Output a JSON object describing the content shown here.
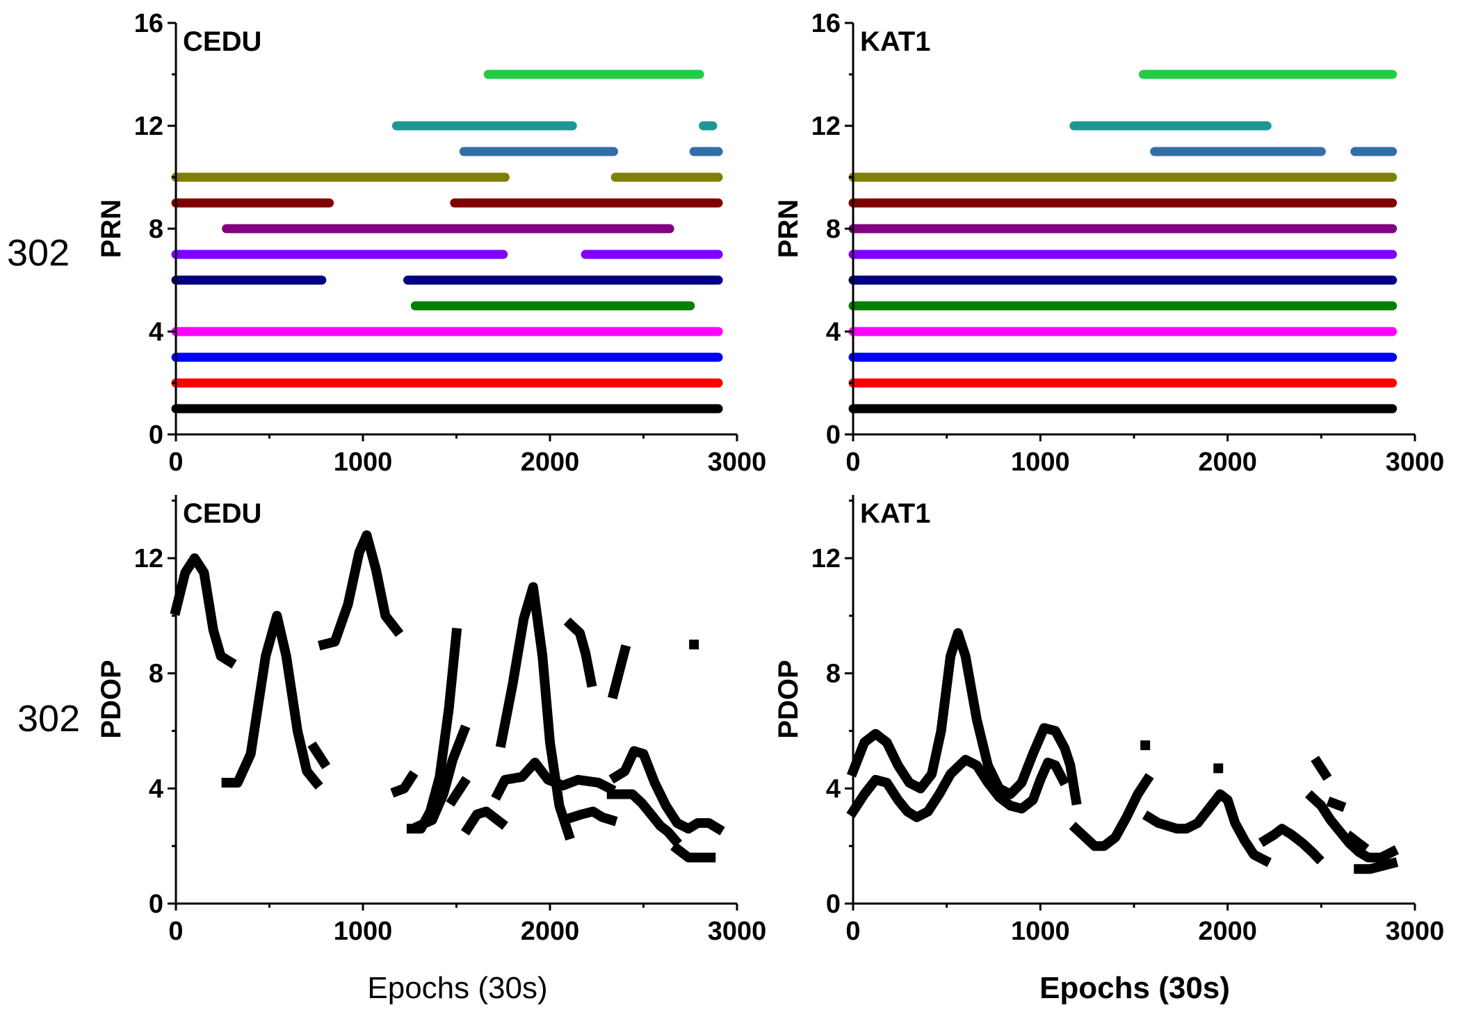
{
  "figure": {
    "side_labels": [
      "302",
      "302"
    ],
    "xlabels": [
      "Epochs (30s)",
      "Epochs (30s)"
    ]
  },
  "chart_data": [
    {
      "id": "prn-cedu",
      "type": "scatter",
      "title": "CEDU",
      "xlabel": "",
      "ylabel": "PRN",
      "xlim": [
        0,
        3000
      ],
      "ylim": [
        0,
        16
      ],
      "xticks": [
        0,
        1000,
        2000,
        3000
      ],
      "yticks": [
        0,
        4,
        8,
        12,
        16
      ],
      "yticks_minor": [
        2,
        6,
        10,
        14
      ],
      "series": [
        {
          "prn": 1,
          "color": "#000000",
          "segments": [
            [
              0,
              2900
            ]
          ]
        },
        {
          "prn": 2,
          "color": "#ff0000",
          "segments": [
            [
              0,
              2900
            ]
          ]
        },
        {
          "prn": 3,
          "color": "#0000ff",
          "segments": [
            [
              0,
              2900
            ]
          ]
        },
        {
          "prn": 4,
          "color": "#ff00ff",
          "segments": [
            [
              0,
              2900
            ]
          ]
        },
        {
          "prn": 5,
          "color": "#008000",
          "segments": [
            [
              1280,
              2750
            ]
          ]
        },
        {
          "prn": 6,
          "color": "#000080",
          "segments": [
            [
              0,
              780
            ],
            [
              1240,
              2900
            ]
          ]
        },
        {
          "prn": 7,
          "color": "#8000ff",
          "segments": [
            [
              0,
              1750
            ],
            [
              2190,
              2900
            ]
          ]
        },
        {
          "prn": 8,
          "color": "#800080",
          "segments": [
            [
              270,
              2640
            ]
          ]
        },
        {
          "prn": 9,
          "color": "#800000",
          "segments": [
            [
              0,
              820
            ],
            [
              1490,
              2900
            ]
          ]
        },
        {
          "prn": 10,
          "color": "#808000",
          "segments": [
            [
              0,
              1760
            ],
            [
              2350,
              2900
            ]
          ]
        },
        {
          "prn": 11,
          "color": "#336ea8",
          "segments": [
            [
              1540,
              2340
            ],
            [
              2770,
              2900
            ]
          ]
        },
        {
          "prn": 12,
          "color": "#1e9696",
          "segments": [
            [
              1180,
              2120
            ],
            [
              2820,
              2870
            ]
          ]
        },
        {
          "prn": 14,
          "color": "#22cc44",
          "segments": [
            [
              1670,
              2800
            ]
          ]
        }
      ]
    },
    {
      "id": "prn-kat1",
      "type": "scatter",
      "title": "KAT1",
      "xlabel": "",
      "ylabel": "PRN",
      "xlim": [
        0,
        3000
      ],
      "ylim": [
        0,
        16
      ],
      "xticks": [
        0,
        1000,
        2000,
        3000
      ],
      "yticks": [
        0,
        4,
        8,
        12,
        16
      ],
      "yticks_minor": [
        2,
        6,
        10,
        14
      ],
      "series": [
        {
          "prn": 1,
          "color": "#000000",
          "segments": [
            [
              0,
              2880
            ]
          ]
        },
        {
          "prn": 2,
          "color": "#ff0000",
          "segments": [
            [
              0,
              2880
            ]
          ]
        },
        {
          "prn": 3,
          "color": "#0000ff",
          "segments": [
            [
              0,
              2880
            ]
          ]
        },
        {
          "prn": 4,
          "color": "#ff00ff",
          "segments": [
            [
              0,
              2880
            ]
          ]
        },
        {
          "prn": 5,
          "color": "#008000",
          "segments": [
            [
              0,
              2880
            ]
          ]
        },
        {
          "prn": 6,
          "color": "#000080",
          "segments": [
            [
              0,
              2880
            ]
          ]
        },
        {
          "prn": 7,
          "color": "#8000ff",
          "segments": [
            [
              0,
              2880
            ]
          ]
        },
        {
          "prn": 8,
          "color": "#800080",
          "segments": [
            [
              0,
              2880
            ]
          ]
        },
        {
          "prn": 9,
          "color": "#800000",
          "segments": [
            [
              0,
              2880
            ]
          ]
        },
        {
          "prn": 10,
          "color": "#808000",
          "segments": [
            [
              0,
              2880
            ]
          ]
        },
        {
          "prn": 11,
          "color": "#336ea8",
          "segments": [
            [
              1610,
              2500
            ],
            [
              2680,
              2880
            ]
          ]
        },
        {
          "prn": 12,
          "color": "#1e9696",
          "segments": [
            [
              1180,
              2210
            ]
          ]
        },
        {
          "prn": 14,
          "color": "#22cc44",
          "segments": [
            [
              1550,
              2880
            ]
          ]
        }
      ]
    },
    {
      "id": "pdop-cedu",
      "type": "scatter",
      "title": "CEDU",
      "xlabel": "Epochs (30s)",
      "ylabel": "PDOP",
      "xlim": [
        0,
        3000
      ],
      "ylim": [
        0,
        14.2
      ],
      "xticks": [
        0,
        1000,
        2000,
        3000
      ],
      "yticks": [
        0,
        4,
        8,
        12
      ],
      "yticks_minor": [
        2,
        6,
        10,
        14
      ],
      "segments": [
        [
          [
            0,
            10.2
          ],
          [
            50,
            11.5
          ],
          [
            100,
            12
          ],
          [
            150,
            11.5
          ],
          [
            200,
            9.5
          ],
          [
            240,
            8.6
          ],
          [
            290,
            8.4
          ]
        ],
        [
          [
            270,
            4.2
          ],
          [
            330,
            4.2
          ],
          [
            400,
            5.2
          ],
          [
            480,
            8.6
          ],
          [
            540,
            10
          ],
          [
            590,
            8.6
          ],
          [
            650,
            6
          ],
          [
            700,
            4.6
          ],
          [
            750,
            4.2
          ]
        ],
        [
          [
            740,
            5.4
          ],
          [
            790,
            4.9
          ]
        ],
        [
          [
            790,
            9.0
          ],
          [
            850,
            9.1
          ],
          [
            920,
            10.4
          ],
          [
            980,
            12.2
          ],
          [
            1020,
            12.8
          ],
          [
            1070,
            11.6
          ],
          [
            1120,
            10
          ],
          [
            1180,
            9.5
          ]
        ],
        [
          [
            1180,
            3.9
          ],
          [
            1220,
            4.0
          ],
          [
            1260,
            4.4
          ]
        ],
        [
          [
            1260,
            2.6
          ],
          [
            1310,
            2.6
          ],
          [
            1360,
            3.2
          ],
          [
            1410,
            4.4
          ],
          [
            1460,
            6.8
          ],
          [
            1500,
            9.4
          ]
        ],
        [
          [
            1300,
            2.7
          ],
          [
            1370,
            2.9
          ],
          [
            1430,
            3.8
          ],
          [
            1480,
            5.0
          ],
          [
            1540,
            6.0
          ]
        ],
        [
          [
            1480,
            3.6
          ],
          [
            1540,
            4.2
          ]
        ],
        [
          [
            1560,
            2.6
          ],
          [
            1610,
            3.1
          ],
          [
            1660,
            3.2
          ],
          [
            1700,
            3.0
          ],
          [
            1740,
            2.8
          ]
        ],
        [
          [
            1720,
            3.8
          ],
          [
            1760,
            4.3
          ],
          [
            1850,
            4.4
          ],
          [
            1920,
            4.9
          ],
          [
            1990,
            4.3
          ],
          [
            2070,
            4.1
          ],
          [
            2150,
            4.3
          ],
          [
            2260,
            4.2
          ],
          [
            2320,
            4.0
          ]
        ],
        [
          [
            1740,
            5.6
          ],
          [
            1800,
            7.6
          ],
          [
            1860,
            9.9
          ],
          [
            1910,
            11.0
          ],
          [
            1960,
            8.6
          ],
          [
            2000,
            5.6
          ],
          [
            2050,
            3.4
          ],
          [
            2100,
            2.4
          ]
        ],
        [
          [
            2110,
            9.7
          ],
          [
            2160,
            9.4
          ],
          [
            2190,
            8.7
          ],
          [
            2220,
            7.7
          ]
        ],
        [
          [
            2120,
            3.0
          ],
          [
            2170,
            3.1
          ],
          [
            2230,
            3.2
          ],
          [
            2280,
            3.0
          ],
          [
            2330,
            2.9
          ]
        ],
        [
          [
            2340,
            7.3
          ],
          [
            2380,
            8.3
          ],
          [
            2400,
            8.8
          ]
        ],
        [
          [
            2330,
            3.8
          ],
          [
            2380,
            3.8
          ],
          [
            2440,
            3.8
          ],
          [
            2490,
            3.5
          ],
          [
            2540,
            3.1
          ],
          [
            2590,
            2.7
          ],
          [
            2630,
            2.5
          ],
          [
            2670,
            2.2
          ]
        ],
        [
          [
            2350,
            4.4
          ],
          [
            2400,
            4.6
          ],
          [
            2450,
            5.3
          ],
          [
            2500,
            5.2
          ],
          [
            2560,
            4.2
          ],
          [
            2620,
            3.4
          ],
          [
            2680,
            2.8
          ],
          [
            2740,
            2.6
          ],
          [
            2790,
            2.8
          ],
          [
            2850,
            2.8
          ],
          [
            2900,
            2.6
          ]
        ],
        [
          [
            2680,
            1.9
          ],
          [
            2740,
            1.6
          ],
          [
            2800,
            1.6
          ],
          [
            2860,
            1.6
          ]
        ],
        [
          [
            2770,
            9.0
          ]
        ]
      ]
    },
    {
      "id": "pdop-kat1",
      "type": "scatter",
      "title": "KAT1",
      "xlabel": "Epochs (30s)",
      "ylabel": "PDOP",
      "xlim": [
        0,
        3000
      ],
      "ylim": [
        0,
        14.2
      ],
      "xticks": [
        0,
        1000,
        2000,
        3000
      ],
      "yticks": [
        0,
        4,
        8,
        12
      ],
      "yticks_minor": [
        2,
        6,
        10,
        14
      ],
      "segments": [
        [
          [
            0,
            3.2
          ],
          [
            60,
            3.8
          ],
          [
            120,
            4.3
          ],
          [
            180,
            4.2
          ],
          [
            240,
            3.6
          ],
          [
            290,
            3.2
          ],
          [
            340,
            3.0
          ],
          [
            400,
            3.2
          ],
          [
            460,
            3.8
          ],
          [
            520,
            4.5
          ],
          [
            600,
            5.0
          ],
          [
            660,
            4.8
          ],
          [
            720,
            4.2
          ],
          [
            780,
            3.7
          ],
          [
            840,
            3.4
          ],
          [
            900,
            3.3
          ],
          [
            960,
            3.6
          ],
          [
            1000,
            4.3
          ],
          [
            1040,
            4.9
          ],
          [
            1080,
            4.8
          ],
          [
            1120,
            4.3
          ]
        ],
        [
          [
            0,
            4.6
          ],
          [
            60,
            5.6
          ],
          [
            120,
            5.9
          ],
          [
            180,
            5.6
          ],
          [
            240,
            4.8
          ],
          [
            300,
            4.2
          ],
          [
            360,
            4.0
          ],
          [
            420,
            4.5
          ],
          [
            470,
            6.0
          ],
          [
            520,
            8.6
          ],
          [
            560,
            9.4
          ],
          [
            600,
            8.6
          ],
          [
            660,
            6.4
          ],
          [
            720,
            4.8
          ],
          [
            780,
            4.0
          ],
          [
            840,
            3.8
          ],
          [
            900,
            4.2
          ],
          [
            960,
            5.2
          ],
          [
            1020,
            6.1
          ],
          [
            1080,
            6.0
          ],
          [
            1130,
            5.4
          ],
          [
            1160,
            4.8
          ],
          [
            1190,
            3.6
          ]
        ],
        [
          [
            1190,
            2.6
          ],
          [
            1240,
            2.3
          ],
          [
            1290,
            2.0
          ],
          [
            1340,
            2.0
          ],
          [
            1400,
            2.3
          ],
          [
            1460,
            3.0
          ],
          [
            1520,
            3.8
          ],
          [
            1570,
            4.3
          ]
        ],
        [
          [
            1560,
            5.5
          ]
        ],
        [
          [
            1580,
            3.0
          ],
          [
            1630,
            2.8
          ],
          [
            1680,
            2.7
          ],
          [
            1730,
            2.6
          ],
          [
            1780,
            2.6
          ],
          [
            1840,
            2.8
          ],
          [
            1900,
            3.3
          ],
          [
            1960,
            3.8
          ],
          [
            2000,
            3.6
          ],
          [
            2040,
            2.8
          ],
          [
            2090,
            2.2
          ],
          [
            2140,
            1.7
          ],
          [
            2200,
            1.5
          ]
        ],
        [
          [
            1950,
            4.7
          ]
        ],
        [
          [
            2200,
            2.2
          ],
          [
            2250,
            2.4
          ],
          [
            2290,
            2.6
          ],
          [
            2340,
            2.4
          ],
          [
            2400,
            2.1
          ],
          [
            2450,
            1.8
          ],
          [
            2480,
            1.6
          ]
        ],
        [
          [
            2450,
            3.7
          ],
          [
            2500,
            3.4
          ],
          [
            2550,
            2.9
          ],
          [
            2600,
            2.5
          ],
          [
            2650,
            2.1
          ],
          [
            2700,
            1.8
          ],
          [
            2750,
            1.6
          ],
          [
            2820,
            1.6
          ],
          [
            2880,
            1.8
          ]
        ],
        [
          [
            2480,
            4.9
          ],
          [
            2520,
            4.5
          ]
        ],
        [
          [
            2560,
            3.5
          ],
          [
            2600,
            3.4
          ]
        ],
        [
          [
            2660,
            2.3
          ],
          [
            2720,
            2.0
          ]
        ],
        [
          [
            2700,
            1.2
          ],
          [
            2760,
            1.2
          ],
          [
            2820,
            1.3
          ],
          [
            2880,
            1.4
          ]
        ]
      ]
    }
  ]
}
